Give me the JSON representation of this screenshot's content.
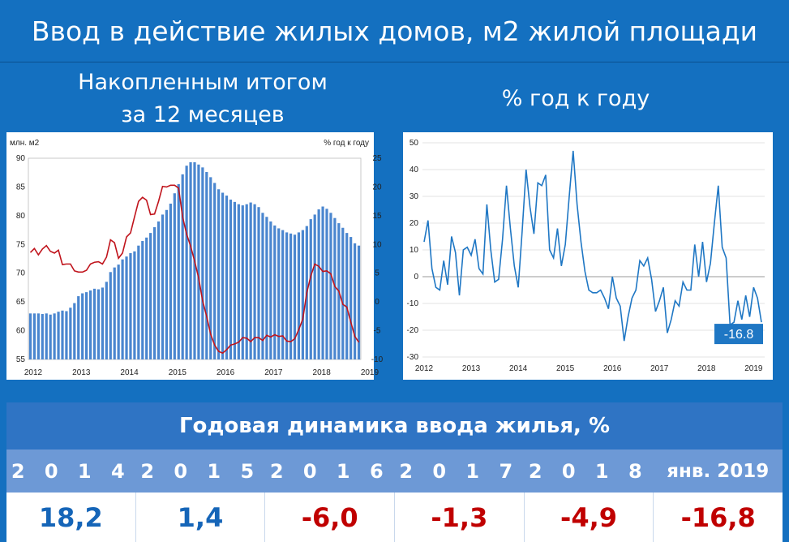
{
  "header": {
    "title": "Ввод в действие жилых домов, м2 жилой площади",
    "left_subtitle_line1": "Накопленным итогом",
    "left_subtitle_line2": "за 12 месяцев",
    "right_subtitle": "% год к году"
  },
  "chart_data": [
    {
      "type": "bar+line",
      "ylabel_left": "млн. м2",
      "ylabel_right": "% год к году",
      "ylim_left": [
        55,
        90
      ],
      "ylim_right": [
        -10,
        25
      ],
      "yticks_left": [
        55,
        60,
        65,
        70,
        75,
        80,
        85,
        90
      ],
      "yticks_right": [
        -10,
        -5,
        0,
        5,
        10,
        15,
        20,
        25
      ],
      "xticks": [
        "2012",
        "2013",
        "2014",
        "2015",
        "2016",
        "2017",
        "2018",
        "2019"
      ],
      "colors": {
        "bars": "#4a86cf",
        "line": "#c0141c"
      },
      "series": [
        {
          "kind": "bar",
          "values": [
            63.0,
            63.0,
            63.0,
            62.9,
            63.0,
            62.8,
            63.0,
            63.3,
            63.5,
            63.4,
            64.0,
            64.8,
            66.0,
            66.5,
            66.7,
            67.0,
            67.3,
            67.2,
            67.5,
            68.5,
            70.2,
            71.0,
            71.5,
            72.4,
            72.9,
            73.5,
            73.8,
            74.8,
            75.6,
            76.2,
            77.0,
            78.0,
            79.0,
            80.2,
            81.0,
            82.1,
            83.9,
            85.5,
            87.2,
            88.7,
            89.3,
            89.3,
            88.9,
            88.4,
            87.6,
            86.7,
            85.7,
            84.6,
            84.0,
            83.5,
            82.8,
            82.4,
            82.0,
            81.8,
            82.0,
            82.3,
            82.0,
            81.5,
            80.5,
            79.8,
            79.0,
            78.3,
            77.8,
            77.5,
            77.1,
            76.9,
            76.7,
            77.1,
            77.5,
            78.2,
            79.4,
            80.2,
            81.1,
            81.6,
            81.2,
            80.5,
            79.6,
            78.7,
            77.9,
            77.0,
            76.3,
            75.2,
            74.8
          ],
          "note": "monthly accumulated 12-month volume, 2012–Jan 2019"
        },
        {
          "kind": "line",
          "values": [
            8.6,
            9.3,
            8.2,
            9.2,
            9.8,
            8.8,
            8.5,
            9.0,
            6.5,
            6.6,
            6.6,
            5.4,
            5.2,
            5.2,
            5.5,
            6.6,
            6.9,
            7.0,
            6.6,
            7.8,
            10.8,
            10.3,
            7.6,
            8.5,
            11.3,
            12.0,
            14.8,
            17.5,
            18.2,
            17.7,
            15.2,
            15.3,
            17.5,
            20.1,
            20.0,
            20.3,
            20.3,
            19.8,
            14.8,
            11.8,
            9.7,
            7.1,
            4.2,
            0.2,
            -2.5,
            -5.6,
            -7.5,
            -8.6,
            -8.9,
            -8.3,
            -7.5,
            -7.3,
            -7.0,
            -6.2,
            -6.3,
            -6.9,
            -6.2,
            -6.2,
            -6.7,
            -5.8,
            -6.1,
            -5.7,
            -6.0,
            -5.9,
            -6.8,
            -6.9,
            -6.4,
            -4.8,
            -3.0,
            1.6,
            4.5,
            6.6,
            6.2,
            5.3,
            5.4,
            4.9,
            2.7,
            1.9,
            -0.4,
            -0.9,
            -3.5,
            -6.0,
            -7.0
          ],
          "note": "y/y growth of 12-month sum, right axis"
        }
      ]
    },
    {
      "type": "line",
      "ylim": [
        -30,
        50
      ],
      "yticks": [
        -30,
        -20,
        -10,
        0,
        10,
        20,
        30,
        40,
        50
      ],
      "xticks": [
        "2012",
        "2013",
        "2014",
        "2015",
        "2016",
        "2017",
        "2018",
        "2019"
      ],
      "color": "#1f77c4",
      "values": [
        13,
        21,
        3,
        -4,
        -5,
        6,
        -3,
        15,
        9,
        -7,
        10,
        11,
        8,
        14,
        3,
        1,
        27,
        10,
        -2,
        -1,
        14,
        34,
        18,
        4,
        -4,
        17,
        40,
        26,
        16,
        35,
        34,
        38,
        10,
        7,
        18,
        4,
        12,
        30,
        47,
        27,
        13,
        2,
        -5,
        -6,
        -6,
        -5,
        -8,
        -12,
        0,
        -8,
        -11,
        -24,
        -15,
        -8,
        -5,
        6,
        4,
        7,
        -1,
        -13,
        -9,
        -4,
        -21,
        -16,
        -9,
        -11,
        -2,
        -5,
        -5,
        12,
        0,
        13,
        -2,
        5,
        20,
        34,
        11,
        7,
        -18,
        -17,
        -9,
        -16,
        -7,
        -15,
        -4,
        -8,
        -17
      ],
      "last_label": "-16.8"
    }
  ],
  "table": {
    "title": "Годовая динамика ввода жилья, %",
    "years": [
      "2 0 1 4",
      "2 0 1 5",
      "2 0 1 6",
      "2 0 1 7",
      "2 0 1 8",
      "янв. 2019"
    ],
    "values": [
      "18,2",
      "1,4",
      "-6,0",
      "-1,3",
      "-4,9",
      "-16,8"
    ],
    "colors": {
      "positive": "#1565b8",
      "negative": "#c00000"
    }
  }
}
